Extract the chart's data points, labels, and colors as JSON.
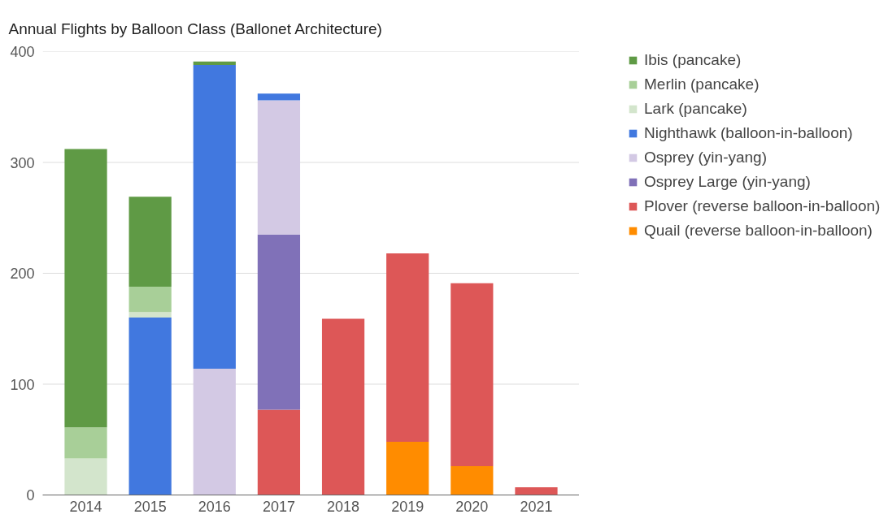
{
  "chart_data": {
    "type": "bar",
    "title": "Annual Flights by Balloon Class (Ballonet Architecture)",
    "categories": [
      "2014",
      "2015",
      "2016",
      "2017",
      "2018",
      "2019",
      "2020",
      "2021"
    ],
    "stacked": true,
    "ylim": [
      0,
      400
    ],
    "yticks": [
      0,
      100,
      200,
      300,
      400
    ],
    "grid": "y",
    "legend": "right",
    "series": [
      {
        "name": "Quail (reverse balloon-in-balloon)",
        "color": "#ff8c00",
        "values": [
          null,
          null,
          null,
          null,
          null,
          48,
          26,
          null
        ]
      },
      {
        "name": "Plover (reverse balloon-in-balloon)",
        "color": "#dd5757",
        "values": [
          null,
          null,
          null,
          77,
          159,
          170,
          165,
          7
        ]
      },
      {
        "name": "Osprey Large (yin-yang)",
        "color": "#8071b8",
        "values": [
          null,
          null,
          null,
          158,
          null,
          null,
          null,
          null
        ]
      },
      {
        "name": "Osprey (yin-yang)",
        "color": "#d3c9e4",
        "values": [
          null,
          null,
          114,
          121,
          null,
          null,
          null,
          null
        ]
      },
      {
        "name": "Nighthawk (balloon-in-balloon)",
        "color": "#4178df",
        "values": [
          null,
          160,
          274,
          6,
          null,
          null,
          null,
          null
        ]
      },
      {
        "name": "Lark (pancake)",
        "color": "#d3e5cc",
        "values": [
          33,
          5,
          null,
          null,
          null,
          null,
          null,
          null
        ]
      },
      {
        "name": "Merlin (pancake)",
        "color": "#a8cf98",
        "values": [
          28,
          23,
          null,
          null,
          null,
          null,
          null,
          null
        ]
      },
      {
        "name": "Ibis (pancake)",
        "color": "#5f9a45",
        "values": [
          251,
          81,
          3,
          null,
          null,
          null,
          null,
          null
        ]
      }
    ]
  }
}
